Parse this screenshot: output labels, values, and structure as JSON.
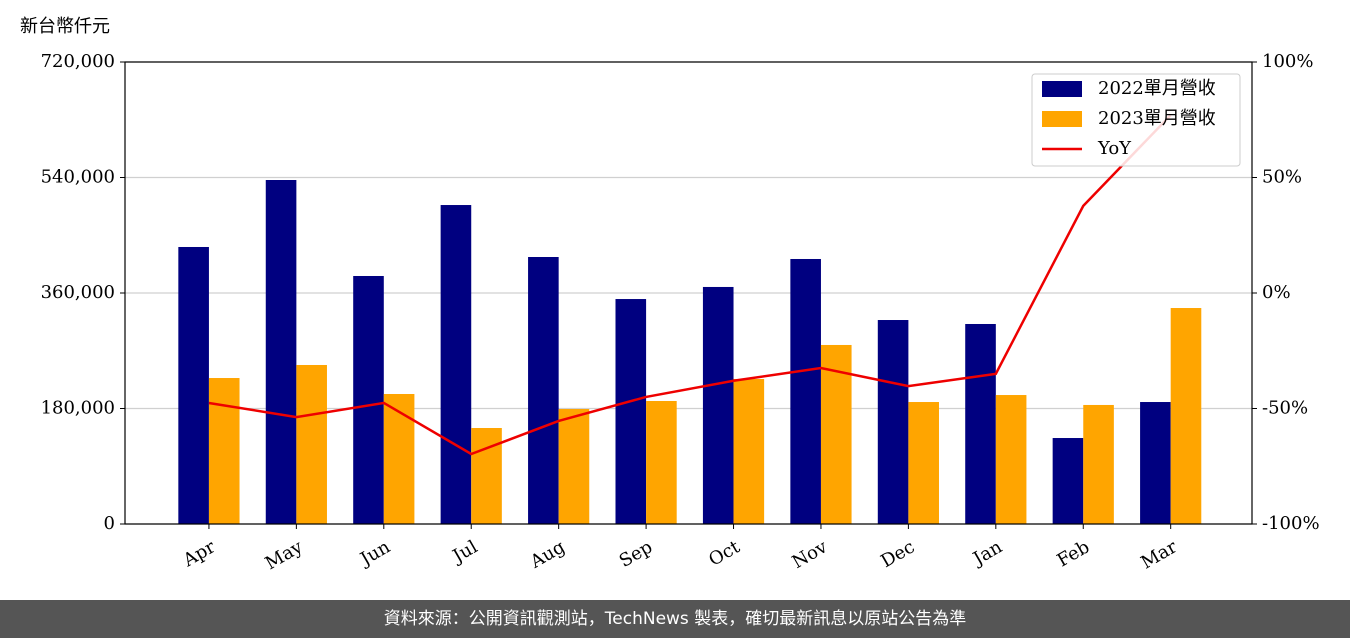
{
  "chart_data": {
    "type": "bar_line",
    "y_label": "新台幣仟元",
    "categories": [
      "Apr",
      "May",
      "Jun",
      "Jul",
      "Aug",
      "Sep",
      "Oct",
      "Nov",
      "Dec",
      "Jan",
      "Feb",
      "Mar"
    ],
    "series": [
      {
        "name": "2022單月營收",
        "color": "#000080",
        "type": "bar",
        "values": [
          431700,
          536100,
          386500,
          497100,
          416100,
          350600,
          369400,
          413000,
          317900,
          311700,
          134000,
          190100
        ]
      },
      {
        "name": "2023單月營收",
        "color": "#ffa500",
        "type": "bar",
        "values": [
          227500,
          247800,
          202600,
          149600,
          179200,
          191700,
          226000,
          279000,
          190100,
          201000,
          185500,
          336600
        ]
      },
      {
        "name": "YoY",
        "color": "#ee0000",
        "type": "line",
        "axis": "y2",
        "values": [
          -47.6,
          -53.7,
          -47.6,
          -69.7,
          -55.4,
          -45,
          -38,
          -32.5,
          -40.3,
          -35,
          37.7,
          77
        ]
      }
    ],
    "ylim": [
      0,
      720000
    ],
    "yticks": [
      0,
      {
        "value": 180000,
        "label": "180,000"
      },
      {
        "value": 360000,
        "label": "360,000"
      },
      {
        "value": 540000,
        "label": "540,000"
      },
      {
        "value": 720000,
        "label": "720,000"
      }
    ],
    "y2lim": [
      -100,
      100
    ],
    "y2ticks": [
      {
        "value": -100,
        "label": "-100%"
      },
      {
        "value": -50,
        "label": "-50%"
      },
      {
        "value": 0,
        "label": "0%"
      },
      {
        "value": 50,
        "label": "50%"
      },
      {
        "value": 100,
        "label": "100%"
      }
    ],
    "grid": true,
    "legend": "upper right"
  },
  "footer": "資料來源：公開資訊觀測站，TechNews 製表，確切最新訊息以原站公告為準"
}
